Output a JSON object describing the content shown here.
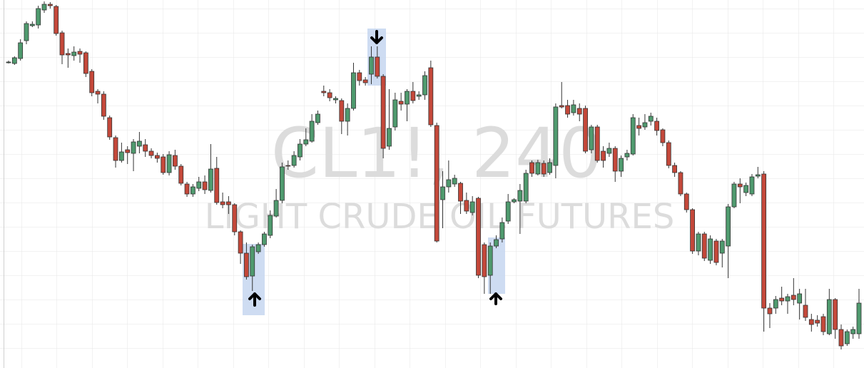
{
  "chart_data": {
    "type": "candlestick",
    "title": "CL1!, 240",
    "subtitle": "LIGHT CRUDE OIL FUTURES",
    "up_color": "#4f9a6e",
    "down_color": "#c4483a",
    "edge_color": "#333333",
    "ylim": [
      0,
      516
    ],
    "open": [
      429,
      427,
      434,
      459,
      480,
      481,
      502,
      510,
      507,
      470,
      441,
      438,
      444,
      442,
      416,
      388,
      384,
      351,
      323,
      291,
      306,
      301,
      311,
      313,
      304,
      298,
      296,
      274,
      298,
      283,
      258,
      244,
      252,
      261,
      249,
      280,
      233,
      233,
      229,
      191,
      161,
      129,
      163,
      173,
      186,
      213,
      235,
      284,
      284,
      296,
      314,
      318,
      344,
      388,
      386,
      376,
      375,
      346,
      364,
      414,
      404,
      412,
      436,
      409,
      311,
      338,
      374,
      370,
      388,
      381,
      383,
      421,
      340,
      236,
      254,
      258,
      259,
      235,
      218,
      238,
      173,
      130,
      171,
      181,
      206,
      233,
      234,
      234,
      288,
      272,
      287,
      274,
      284,
      368,
      368,
      358,
      364,
      364,
      306,
      338,
      304,
      301,
      308,
      276,
      296,
      300,
      340,
      338,
      346,
      346,
      334,
      316,
      284,
      274,
      244,
      222,
      164,
      188,
      151,
      178,
      161,
      171,
      226,
      258,
      246,
      244,
      269,
      272,
      84,
      84,
      98,
      94,
      102,
      91,
      88,
      68,
      67,
      72,
      48,
      96,
      54,
      34,
      48,
      48
    ],
    "high": [
      431,
      437,
      461,
      486,
      486,
      508,
      514,
      513,
      509,
      473,
      448,
      451,
      448,
      444,
      419,
      391,
      388,
      354,
      326,
      316,
      311,
      321,
      331,
      321,
      308,
      302,
      300,
      304,
      306,
      286,
      261,
      258,
      268,
      270,
      314,
      296,
      246,
      241,
      231,
      193,
      176,
      173,
      176,
      191,
      221,
      251,
      288,
      291,
      304,
      321,
      336,
      356,
      361,
      396,
      391,
      381,
      378,
      371,
      428,
      418,
      408,
      451,
      451,
      412,
      391,
      386,
      386,
      391,
      401,
      388,
      416,
      431,
      344,
      276,
      291,
      271,
      261,
      246,
      241,
      240,
      176,
      176,
      186,
      211,
      244,
      238,
      258,
      278,
      291,
      292,
      291,
      294,
      371,
      401,
      376,
      376,
      371,
      368,
      341,
      341,
      311,
      316,
      311,
      298,
      306,
      356,
      351,
      356,
      358,
      351,
      336,
      319,
      288,
      276,
      246,
      224,
      191,
      191,
      186,
      181,
      181,
      230,
      261,
      266,
      260,
      272,
      282,
      276,
      91,
      101,
      114,
      104,
      126,
      111,
      111,
      76,
      74,
      76,
      111,
      98,
      61,
      54,
      58,
      111
    ],
    "low": [
      427,
      425,
      431,
      454,
      478,
      476,
      498,
      504,
      466,
      426,
      421,
      431,
      428,
      408,
      381,
      371,
      348,
      320,
      281,
      288,
      286,
      276,
      301,
      296,
      294,
      288,
      271,
      270,
      278,
      256,
      240,
      240,
      248,
      244,
      246,
      229,
      224,
      216,
      186,
      146,
      124,
      108,
      160,
      170,
      182,
      211,
      231,
      278,
      281,
      291,
      311,
      316,
      341,
      381,
      374,
      371,
      328,
      326,
      361,
      396,
      396,
      398,
      406,
      294,
      306,
      333,
      361,
      346,
      371,
      376,
      376,
      338,
      176,
      196,
      246,
      254,
      216,
      216,
      214,
      126,
      104,
      104,
      168,
      176,
      202,
      231,
      188,
      231,
      268,
      270,
      268,
      271,
      266,
      364,
      351,
      354,
      346,
      301,
      301,
      288,
      281,
      296,
      261,
      268,
      291,
      298,
      326,
      334,
      340,
      326,
      311,
      280,
      268,
      241,
      218,
      160,
      158,
      150,
      146,
      144,
      141,
      126,
      224,
      231,
      241,
      241,
      266,
      51,
      56,
      76,
      88,
      76,
      88,
      68,
      66,
      51,
      58,
      46,
      46,
      41,
      26,
      31,
      41,
      41
    ],
    "close": [
      429,
      435,
      456,
      483,
      482,
      504,
      510,
      508,
      469,
      439,
      439,
      443,
      440,
      413,
      386,
      384,
      353,
      324,
      291,
      303,
      302,
      317,
      318,
      304,
      298,
      294,
      274,
      299,
      283,
      259,
      244,
      254,
      261,
      250,
      279,
      232,
      229,
      229,
      191,
      161,
      128,
      170,
      173,
      188,
      214,
      235,
      282,
      283,
      298,
      314,
      320,
      346,
      356,
      386,
      379,
      378,
      346,
      364,
      414,
      403,
      400,
      436,
      409,
      308,
      336,
      376,
      370,
      388,
      375,
      383,
      410,
      341,
      178,
      254,
      264,
      266,
      234,
      220,
      233,
      130,
      128,
      171,
      180,
      204,
      233,
      236,
      249,
      273,
      273,
      288,
      272,
      288,
      366,
      366,
      356,
      369,
      356,
      304,
      338,
      291,
      291,
      308,
      276,
      294,
      301,
      351,
      336,
      344,
      353,
      333,
      316,
      284,
      274,
      244,
      222,
      164,
      188,
      154,
      181,
      148,
      178,
      226,
      258,
      254,
      256,
      268,
      271,
      84,
      76,
      96,
      94,
      100,
      96,
      104,
      71,
      61,
      63,
      51,
      96,
      54,
      31,
      51,
      54,
      91
    ]
  }
}
